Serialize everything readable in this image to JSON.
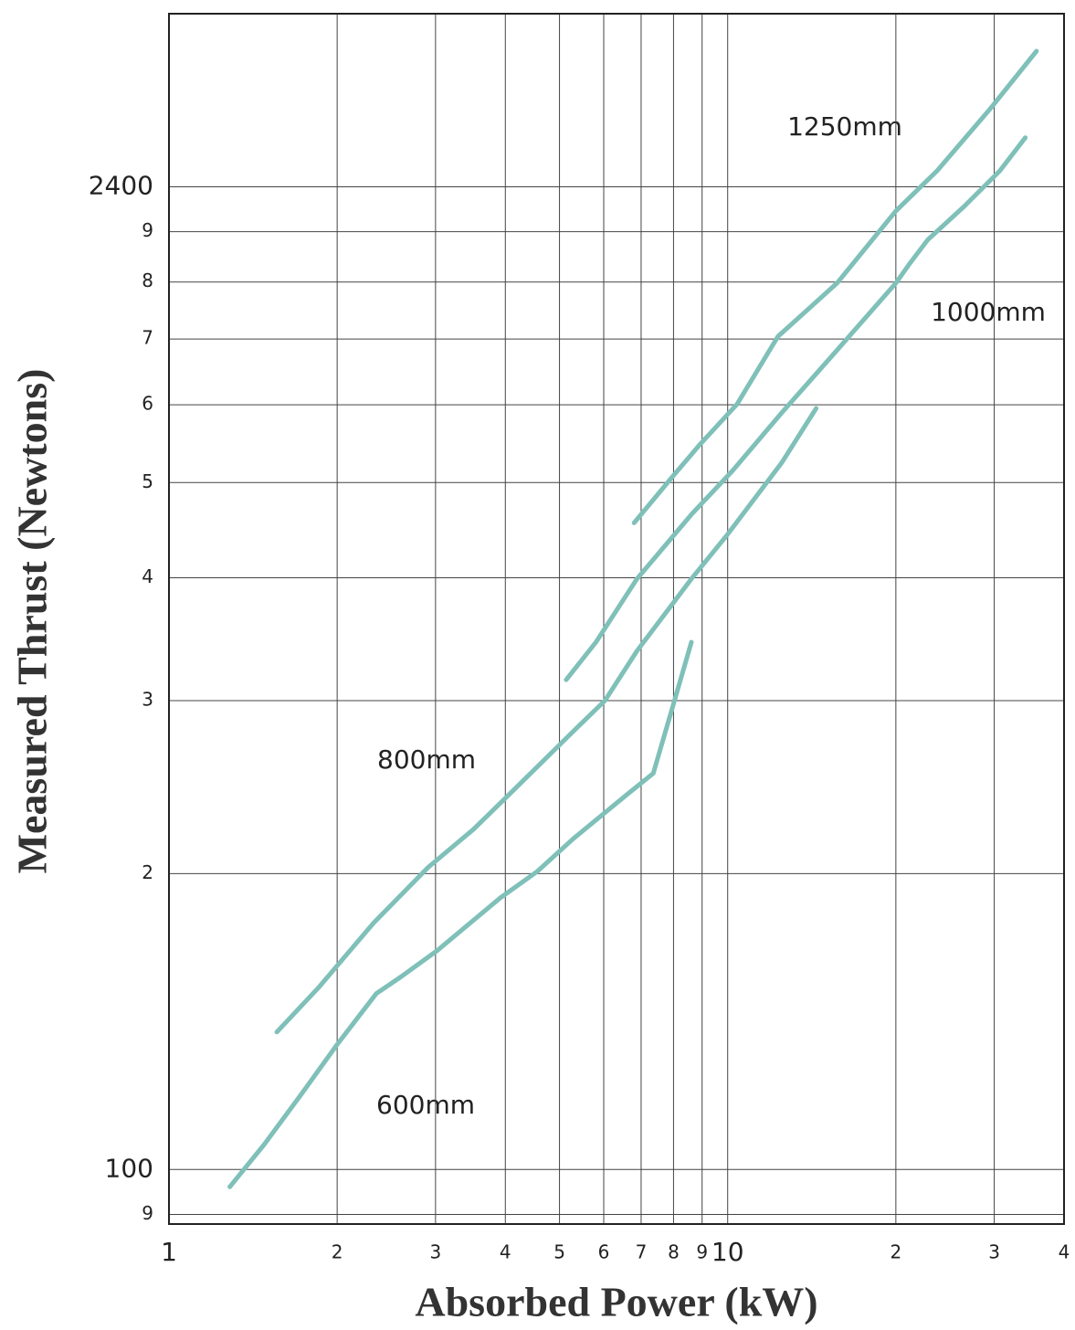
{
  "chart_data": {
    "type": "line",
    "x_label": "Absorbed Power (kW)",
    "y_label": "Measured Thrust (Newtons)",
    "log_x": true,
    "log_y": true,
    "grid": true,
    "xlim": [
      1,
      40
    ],
    "xticks": [
      1,
      2,
      3,
      4,
      5,
      6,
      7,
      8,
      9,
      10,
      {
        "value": 20,
        "label": "2"
      },
      {
        "value": 30,
        "label": "3"
      },
      {
        "value": 40,
        "label": "4"
      }
    ],
    "ylim": [
      88,
      1500
    ],
    "yticks": [
      {
        "value": 90,
        "label": "9"
      },
      100,
      {
        "value": 200,
        "label": "2"
      },
      {
        "value": 300,
        "label": "3"
      },
      {
        "value": 400,
        "label": "4"
      },
      {
        "value": 500,
        "label": "5"
      },
      {
        "value": 600,
        "label": "6"
      },
      {
        "value": 700,
        "label": "7"
      },
      {
        "value": 800,
        "label": "8"
      },
      {
        "value": 900,
        "label": "9"
      },
      {
        "value": 1000,
        "label": "2400"
      }
    ],
    "series": [
      {
        "name": "600mm",
        "color": "#7fc0b9",
        "x": [
          1.285,
          1.48,
          1.72,
          2.0,
          2.35,
          2.6,
          3.02,
          3.92,
          4.56,
          5.29,
          6.62,
          7.36,
          7.99,
          8.61
        ],
        "y": [
          96,
          106,
          119,
          134,
          151,
          157,
          167,
          189,
          201,
          217,
          241,
          253,
          297,
          344
        ]
      },
      {
        "name": "800mm",
        "color": "#7fc0b9",
        "x": [
          1.56,
          1.85,
          2.32,
          2.91,
          3.51,
          4.07,
          5.39,
          6.03,
          6.88,
          8.61,
          10.0,
          12.5,
          14.4
        ],
        "y": [
          138,
          153,
          178,
          203,
          222,
          241,
          282,
          300,
          337,
          399,
          443,
          524,
          595
        ]
      },
      {
        "name": "1000mm",
        "color": "#7fc0b9",
        "x": [
          5.14,
          5.81,
          6.88,
          8.61,
          10.2,
          12.5,
          15.7,
          20.0,
          21.1,
          22.8,
          26.5,
          30.7,
          34.1
        ],
        "y": [
          315,
          344,
          399,
          464,
          514,
          589,
          682,
          798,
          833,
          883,
          955,
          1038,
          1122
        ]
      },
      {
        "name": "1250mm",
        "color": "#7fc0b9",
        "x": [
          6.8,
          7.99,
          8.93,
          10.4,
          12.3,
          15.7,
          20.0,
          23.7,
          29.6,
          35.7
        ],
        "y": [
          455,
          508,
          547,
          601,
          704,
          798,
          945,
          1038,
          1203,
          1374
        ]
      }
    ]
  }
}
